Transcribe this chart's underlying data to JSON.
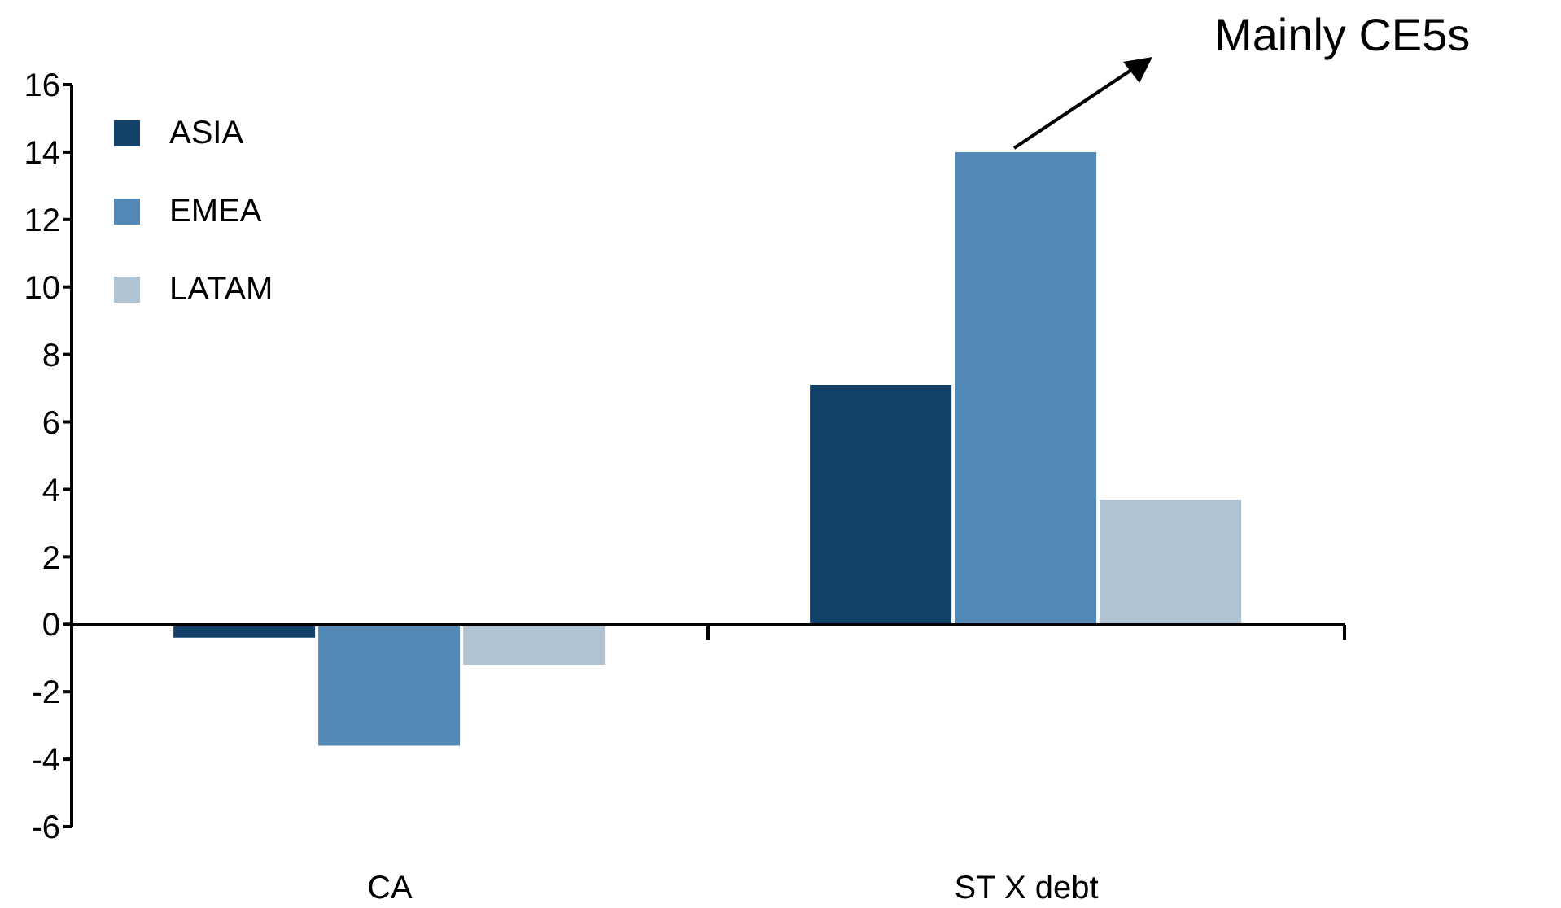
{
  "chart_data": {
    "type": "bar",
    "categories": [
      "CA",
      "ST X debt"
    ],
    "series": [
      {
        "name": "ASIA",
        "color": "#124068",
        "values": [
          -0.4,
          7.1
        ]
      },
      {
        "name": "EMEA",
        "color": "#5389b6",
        "values": [
          -3.6,
          14.0
        ]
      },
      {
        "name": "LATAM",
        "color": "#b0c3d3",
        "values": [
          -1.2,
          3.7
        ]
      }
    ],
    "ylim": [
      -6,
      16
    ],
    "yticks": [
      -6,
      -4,
      -2,
      0,
      2,
      4,
      6,
      8,
      10,
      12,
      14,
      16
    ],
    "legend": "top left",
    "annotations": [
      "Mainly CE5s"
    ]
  }
}
